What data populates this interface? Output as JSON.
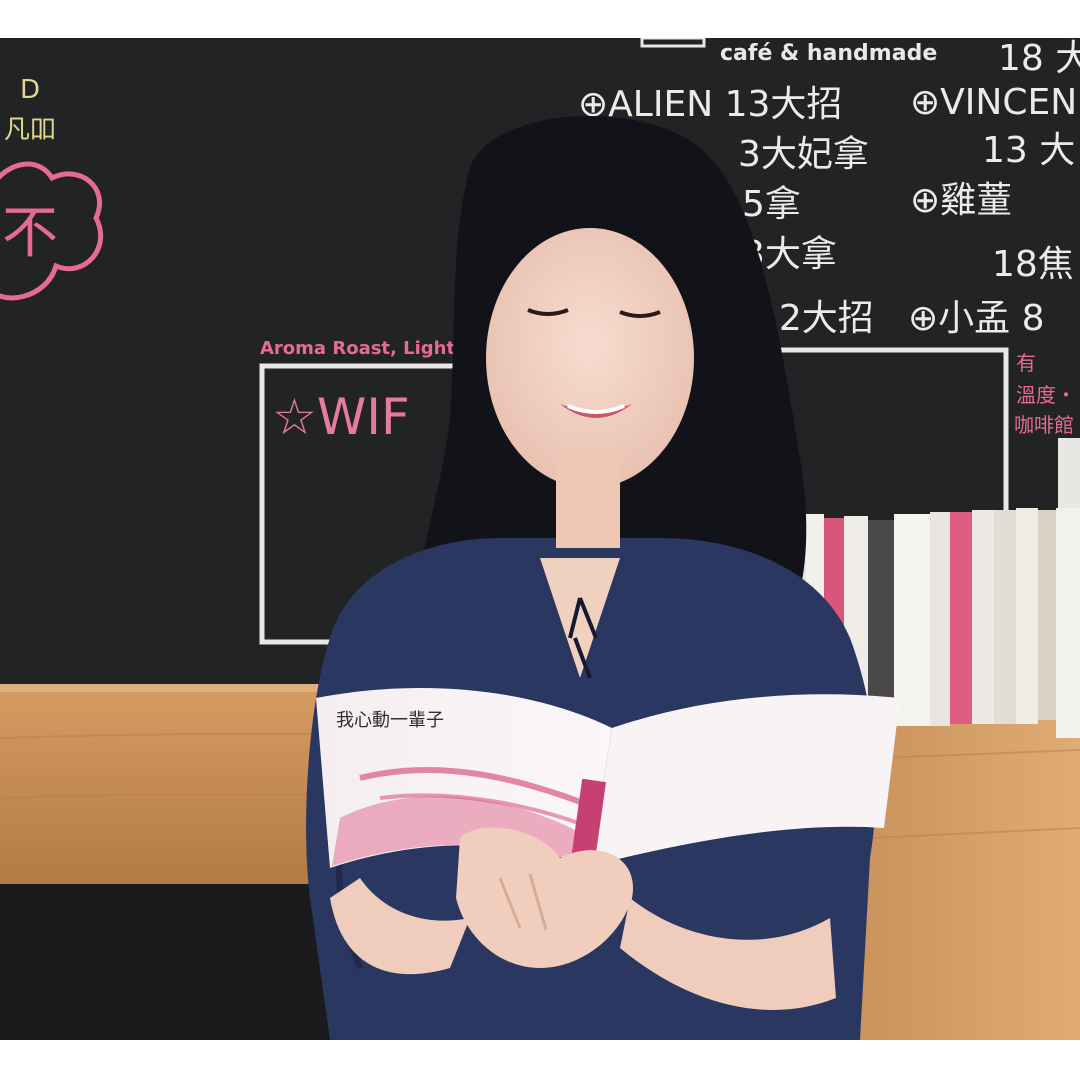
{
  "photo": {
    "kind": "photograph",
    "scene_text": {
      "cafe_sign": "café & handmade",
      "menu": [
        {
          "left": "⊕ALIEN 13大招",
          "right": "⊕VINCEN"
        },
        {
          "left": "3大妃拿",
          "right": "13 大"
        },
        {
          "left": "5拿",
          "right": "⊕雞蕫"
        },
        {
          "left": "3大拿",
          "right": "18焦"
        },
        {
          "left": "12大招",
          "right": "⊕小孟 8"
        }
      ],
      "top_right_number": "18 大",
      "left_chalk_1": "D",
      "left_chalk_2": "凡吅",
      "cloud_chalk": "不",
      "aroma_label": "Aroma Roast, Light D",
      "wifi_chalk": "☆WIF",
      "pink_right_1": "有",
      "pink_right_2": "溫度・",
      "pink_right_3": "咖啡館",
      "book_title": "我心動一輩子"
    },
    "colors": {
      "chalkboard": "#1f2022",
      "chalk_white": "#ecece6",
      "chalk_pink": "#e66b94",
      "wood": "#c98e57",
      "shirt": "#2a3760",
      "hair": "#121318",
      "skin": "#f1d3c3"
    }
  }
}
